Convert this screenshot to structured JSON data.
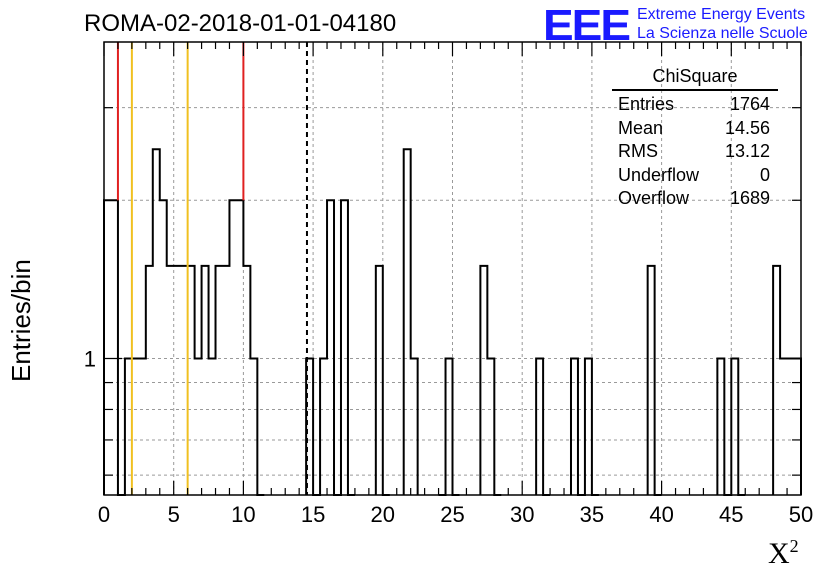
{
  "chart_data": {
    "type": "histogram",
    "title": "ROMA-02-2018-01-01-04180",
    "xlabel": "X",
    "xlabel_superscript": "2",
    "ylabel": "Entries/bin",
    "xlim": [
      0,
      50
    ],
    "ylim_log": [
      0.55,
      4.0
    ],
    "y_scale": "log",
    "grid": true,
    "x_ticks": [
      "0",
      "5",
      "10",
      "15",
      "20",
      "25",
      "30",
      "35",
      "40",
      "45",
      "50"
    ],
    "y_ticks": [
      "1"
    ],
    "bin_width": 0.5,
    "bins": [
      {
        "x": 0.0,
        "count": 2
      },
      {
        "x": 0.5,
        "count": 2
      },
      {
        "x": 1.0,
        "count": 0
      },
      {
        "x": 1.5,
        "count": 1
      },
      {
        "x": 2.0,
        "count": 1
      },
      {
        "x": 2.5,
        "count": 1
      },
      {
        "x": 3.0,
        "count": 1.5
      },
      {
        "x": 3.5,
        "count": 2.5
      },
      {
        "x": 4.0,
        "count": 2
      },
      {
        "x": 4.5,
        "count": 1.5
      },
      {
        "x": 5.0,
        "count": 1.5
      },
      {
        "x": 5.5,
        "count": 1.5
      },
      {
        "x": 6.0,
        "count": 1.5
      },
      {
        "x": 6.5,
        "count": 1
      },
      {
        "x": 7.0,
        "count": 1.5
      },
      {
        "x": 7.5,
        "count": 1
      },
      {
        "x": 8.0,
        "count": 1.5
      },
      {
        "x": 8.5,
        "count": 1.5
      },
      {
        "x": 9.0,
        "count": 2
      },
      {
        "x": 9.5,
        "count": 2
      },
      {
        "x": 10.0,
        "count": 1.5
      },
      {
        "x": 10.5,
        "count": 1
      },
      {
        "x": 11.0,
        "count": 0
      },
      {
        "x": 14.5,
        "count": 1
      },
      {
        "x": 15.0,
        "count": 0
      },
      {
        "x": 15.5,
        "count": 1
      },
      {
        "x": 16.0,
        "count": 2
      },
      {
        "x": 16.5,
        "count": 0
      },
      {
        "x": 17.0,
        "count": 2
      },
      {
        "x": 17.5,
        "count": 0
      },
      {
        "x": 19.5,
        "count": 1.5
      },
      {
        "x": 20.0,
        "count": 0
      },
      {
        "x": 21.5,
        "count": 2.5
      },
      {
        "x": 22.0,
        "count": 1
      },
      {
        "x": 24.0,
        "count": 0
      },
      {
        "x": 24.5,
        "count": 1
      },
      {
        "x": 25.0,
        "count": 0
      },
      {
        "x": 27.0,
        "count": 1.5
      },
      {
        "x": 27.5,
        "count": 1
      },
      {
        "x": 28.0,
        "count": 0
      },
      {
        "x": 31.0,
        "count": 1
      },
      {
        "x": 31.5,
        "count": 0
      },
      {
        "x": 33.5,
        "count": 1
      },
      {
        "x": 34.0,
        "count": 0
      },
      {
        "x": 34.5,
        "count": 1
      },
      {
        "x": 35.0,
        "count": 0
      },
      {
        "x": 39.0,
        "count": 1.5
      },
      {
        "x": 39.5,
        "count": 0
      },
      {
        "x": 44.0,
        "count": 1
      },
      {
        "x": 44.5,
        "count": 0
      },
      {
        "x": 45.0,
        "count": 1
      },
      {
        "x": 45.5,
        "count": 0
      },
      {
        "x": 48.0,
        "count": 1.5
      },
      {
        "x": 48.5,
        "count": 1
      },
      {
        "x": 49.0,
        "count": 1
      },
      {
        "x": 49.5,
        "count": 1
      }
    ],
    "vertical_markers": [
      {
        "x": 1.0,
        "color": "#e02020",
        "style": "solid"
      },
      {
        "x": 2.0,
        "color": "#f0c020",
        "style": "solid"
      },
      {
        "x": 6.0,
        "color": "#f0c020",
        "style": "solid"
      },
      {
        "x": 10.0,
        "color": "#e02020",
        "style": "solid"
      },
      {
        "x": 14.56,
        "color": "#000000",
        "style": "dashed"
      }
    ]
  },
  "stats": {
    "title": "ChiSquare",
    "rows": [
      {
        "label": "Entries",
        "value": "1764"
      },
      {
        "label": "Mean",
        "value": "14.56"
      },
      {
        "label": "RMS",
        "value": "13.12"
      },
      {
        "label": "Underflow",
        "value": "0"
      },
      {
        "label": "Overflow",
        "value": "1689"
      }
    ]
  },
  "logo": {
    "mark": "EEE",
    "line1": "Extreme Energy Events",
    "line2": "La Scienza nelle Scuole",
    "color": "#1a1aff"
  }
}
